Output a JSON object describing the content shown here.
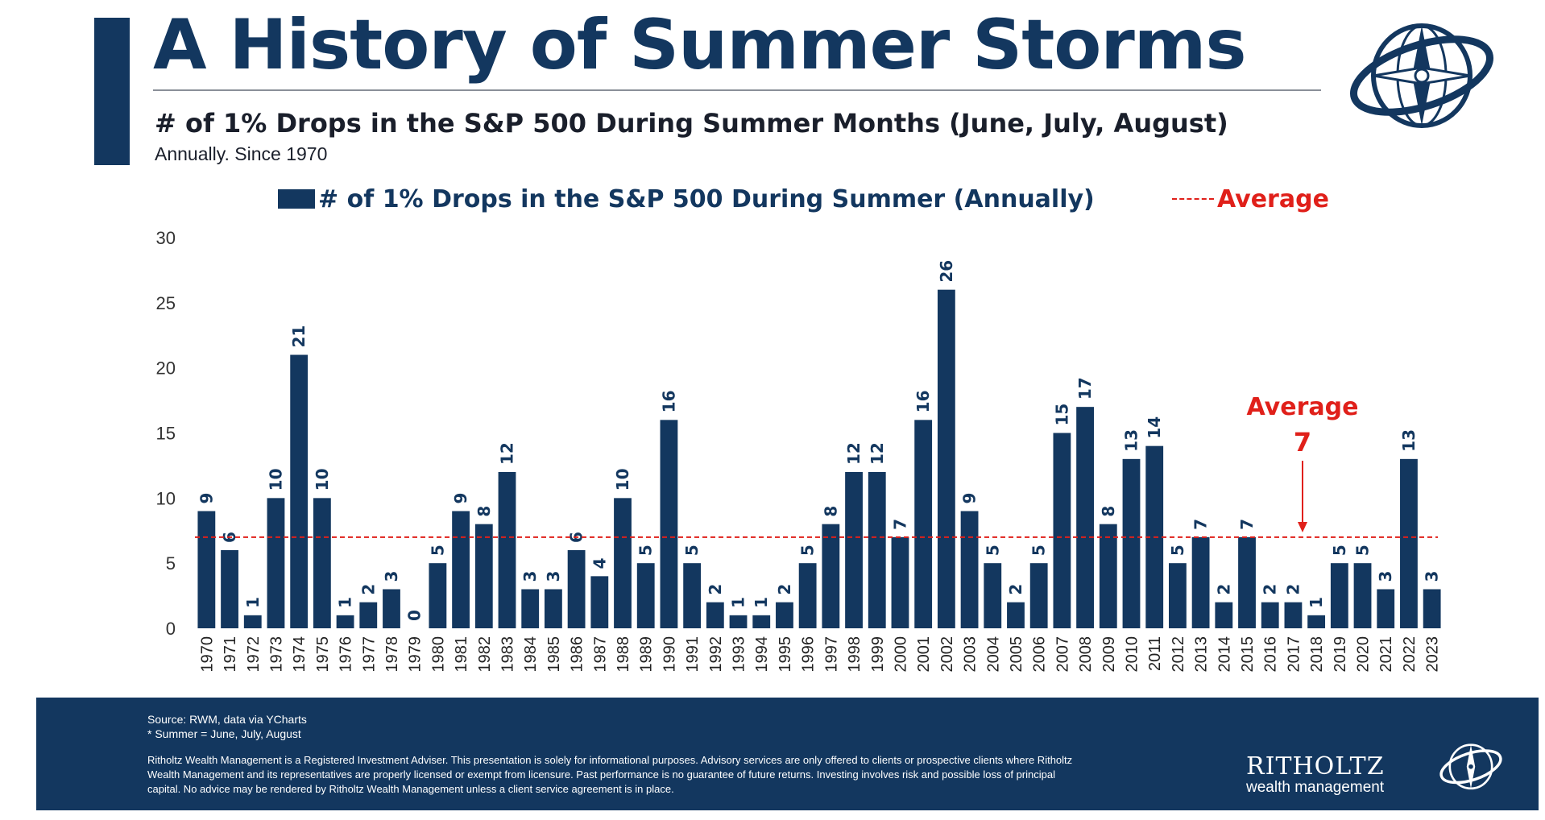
{
  "header": {
    "title": "A History of Summer Storms",
    "subtitle": "# of 1% Drops in the S&P 500 During Summer Months (June, July, August)",
    "note": "Annually. Since 1970"
  },
  "legend": {
    "series_label": "# of 1% Drops in the S&P 500 During Summer (Annually)",
    "average_label": "Average"
  },
  "annotation": {
    "label": "Average",
    "value": "7"
  },
  "footer": {
    "source": "Source: RWM, data via YCharts",
    "summer_note": "* Summer = June, July, August",
    "disclaimer": "Ritholtz Wealth Management is a Registered Investment Adviser. This presentation is solely for informational purposes. Advisory services are only offered to clients or prospective clients where Ritholtz Wealth Management and its representatives are properly licensed or exempt from licensure. Past performance is no guarantee of future returns. Investing involves risk and possible loss of principal capital. No advice may be rendered by Ritholtz Wealth Management unless a client service agreement is in place.",
    "logo_name": "RITHOLTZ",
    "logo_sub": "wealth management"
  },
  "colors": {
    "bar": "#13375f",
    "average_line": "#e0201a",
    "text": "#13375f"
  },
  "icons": [
    "compass-globe-logo-icon",
    "compass-globe-logo-icon-small"
  ],
  "chart_data": {
    "type": "bar",
    "categories": [
      "1970",
      "1971",
      "1972",
      "1973",
      "1974",
      "1975",
      "1976",
      "1977",
      "1978",
      "1979",
      "1980",
      "1981",
      "1982",
      "1983",
      "1984",
      "1985",
      "1986",
      "1987",
      "1988",
      "1989",
      "1990",
      "1991",
      "1992",
      "1993",
      "1994",
      "1995",
      "1996",
      "1997",
      "1998",
      "1999",
      "2000",
      "2001",
      "2002",
      "2003",
      "2004",
      "2005",
      "2006",
      "2007",
      "2008",
      "2009",
      "2010",
      "2011",
      "2012",
      "2013",
      "2014",
      "2015",
      "2016",
      "2017",
      "2018",
      "2019",
      "2020",
      "2021",
      "2022",
      "2023"
    ],
    "values": [
      9,
      6,
      1,
      10,
      21,
      10,
      1,
      2,
      3,
      0,
      5,
      9,
      8,
      12,
      3,
      3,
      6,
      4,
      10,
      5,
      16,
      5,
      2,
      1,
      1,
      2,
      5,
      8,
      12,
      12,
      7,
      16,
      26,
      9,
      5,
      2,
      5,
      15,
      17,
      8,
      13,
      14,
      5,
      7,
      2,
      7,
      2,
      2,
      1,
      5,
      5,
      3,
      13,
      3
    ],
    "series": [
      {
        "name": "# of 1% Drops in the S&P 500 During Summer (Annually)"
      }
    ],
    "average": 7,
    "ylim": [
      0,
      30
    ],
    "yticks": [
      0,
      5,
      10,
      15,
      20,
      25,
      30
    ],
    "data_labels": true,
    "xlabel": "",
    "ylabel": "",
    "legend": "top",
    "grid": false
  }
}
